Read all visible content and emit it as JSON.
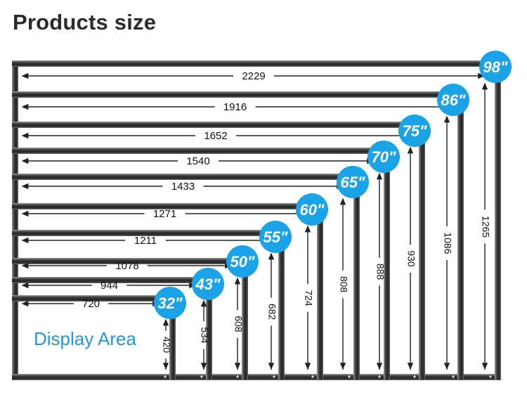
{
  "title": "Products size",
  "display_area_label": "Display Area",
  "colors": {
    "badge": "#1aa3e6",
    "frame_dark": "#2a2a2a",
    "frame_light": "#8a8a8a",
    "label_blue": "#1e9ad8"
  },
  "models": [
    {
      "size_label": "98\"",
      "width": "2229",
      "height": "1265"
    },
    {
      "size_label": "86\"",
      "width": "1916",
      "height": "1086"
    },
    {
      "size_label": "75\"",
      "width": "1652",
      "height": "930"
    },
    {
      "size_label": "70\"",
      "width": "1540",
      "height": "888"
    },
    {
      "size_label": "65\"",
      "width": "1433",
      "height": "808"
    },
    {
      "size_label": "60\"",
      "width": "1271",
      "height": "724"
    },
    {
      "size_label": "55\"",
      "width": "1211",
      "height": "682"
    },
    {
      "size_label": "50\"",
      "width": "1078",
      "height": "608"
    },
    {
      "size_label": "43\"",
      "width": "944",
      "height": "534"
    },
    {
      "size_label": "32\"",
      "width": "720",
      "height": "420"
    }
  ]
}
